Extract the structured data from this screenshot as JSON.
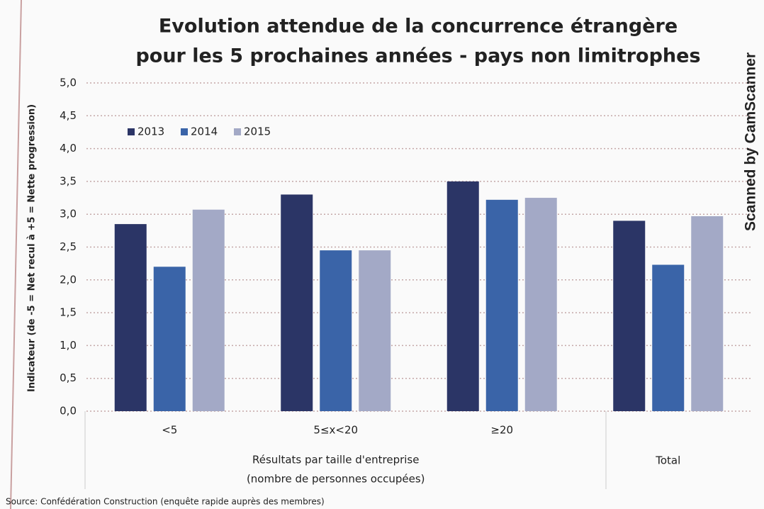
{
  "chart_data": {
    "type": "bar",
    "title_lines": [
      "Evolution attendue de la concurrence étrangère",
      "pour les 5 prochaines années - pays non limitrophes"
    ],
    "y_label": "Indicateur (de -5 = Net recul à +5 = Nette progression)",
    "categories": [
      "<5",
      "5≤x<20",
      "≥20",
      null
    ],
    "groups": [
      [
        "Résultats par taille d'entreprise",
        "(nombre de personnes occupées)"
      ],
      [
        "Total"
      ]
    ],
    "series": [
      {
        "name": "2013",
        "color": "#2b3566",
        "values": [
          2.85,
          3.3,
          3.5,
          2.9
        ]
      },
      {
        "name": "2014",
        "color": "#3a64a8",
        "values": [
          2.2,
          2.45,
          3.22,
          2.23
        ]
      },
      {
        "name": "2015",
        "color": "#a3a9c6",
        "values": [
          3.07,
          2.45,
          3.25,
          2.97
        ]
      }
    ],
    "ylim": [
      0,
      5
    ],
    "yticks": [
      {
        "value": 0,
        "label": "0,0"
      },
      {
        "value": 0.5,
        "label": "0,5"
      },
      {
        "value": 1,
        "label": "1,0"
      },
      {
        "value": 1.5,
        "label": "1,5"
      },
      {
        "value": 2,
        "label": "2,0"
      },
      {
        "value": 2.5,
        "label": "2,5"
      },
      {
        "value": 3,
        "label": "3,0"
      },
      {
        "value": 3.5,
        "label": "3,5"
      },
      {
        "value": 4,
        "label": "4,0"
      },
      {
        "value": 4.5,
        "label": "4,5"
      },
      {
        "value": 5,
        "label": "5,0"
      }
    ],
    "grid": true,
    "legend": "upper left",
    "source": "Source: Confédération Construction (enquête rapide auprès des membres)",
    "watermark": "Scanned by CamScanner"
  }
}
